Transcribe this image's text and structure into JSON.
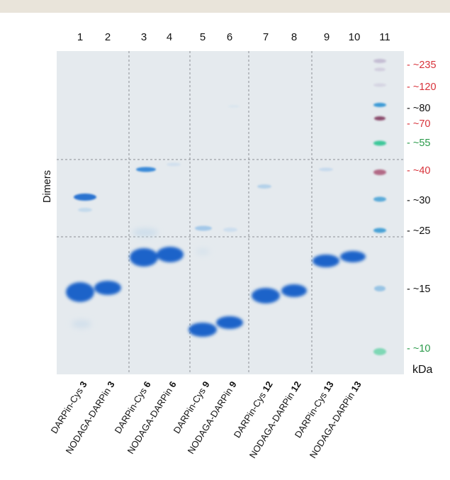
{
  "lanes": [
    "1",
    "2",
    "3",
    "4",
    "5",
    "6",
    "7",
    "8",
    "9",
    "10",
    "11"
  ],
  "markers": [
    {
      "label": "- ~235",
      "color": "#d8323a"
    },
    {
      "label": "- ~120",
      "color": "#d8323a"
    },
    {
      "label": "- ~80",
      "color": "#111111"
    },
    {
      "label": "- ~70",
      "color": "#d8323a"
    },
    {
      "label": "- ~55",
      "color": "#2a9a4a"
    },
    {
      "label": "- ~40",
      "color": "#d8323a"
    },
    {
      "label": "- ~30",
      "color": "#111111"
    },
    {
      "label": "- ~25",
      "color": "#111111"
    },
    {
      "label": "- ~15",
      "color": "#111111"
    },
    {
      "label": "- ~10",
      "color": "#2a9a4a"
    }
  ],
  "unit": "kDa",
  "side_label": "Dimers",
  "samples": [
    {
      "name": "DARPin-Cys",
      "num": "3"
    },
    {
      "name": "NODAGA-DARPin",
      "num": "3"
    },
    {
      "name": "DARPin-Cys",
      "num": "6"
    },
    {
      "name": "NODAGA-DARPin",
      "num": "6"
    },
    {
      "name": "DARPin-Cys",
      "num": "9"
    },
    {
      "name": "NODAGA-DARPin",
      "num": "9"
    },
    {
      "name": "DARPin-Cys",
      "num": "12"
    },
    {
      "name": "NODAGA-DARPin",
      "num": "12"
    },
    {
      "name": "DARPin-Cys",
      "num": "13"
    },
    {
      "name": "NODAGA-DARPin",
      "num": "13"
    }
  ],
  "colors": {
    "gel": "#e5eaee",
    "band": "#1a63c9",
    "marker_blue": "#3b9ad6",
    "marker_red": "#b26a86",
    "marker_green": "#3cc79a"
  }
}
